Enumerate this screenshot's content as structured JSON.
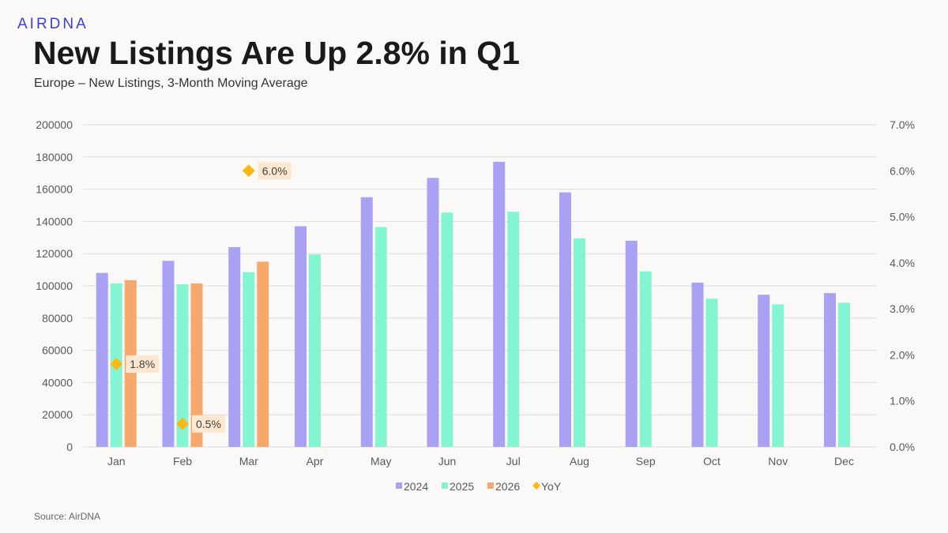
{
  "header": {
    "logo": "AIRDNA",
    "title": "New Listings Are Up 2.8% in Q1",
    "subtitle": "Europe – New Listings, 3-Month Moving Average"
  },
  "footer": {
    "source": "Source: AirDNA"
  },
  "colors": {
    "s2024": "#a9a1f3",
    "s2025": "#83f5d2",
    "s2026": "#f7a86b",
    "yoy": "#fcb913",
    "label_bg": "#fde8cf",
    "grid": "#dcdcdc"
  },
  "chart_data": {
    "type": "bar",
    "categories": [
      "Jan",
      "Feb",
      "Mar",
      "Apr",
      "May",
      "Jun",
      "Jul",
      "Aug",
      "Sep",
      "Oct",
      "Nov",
      "Dec"
    ],
    "series": [
      {
        "name": "2024",
        "values": [
          108000,
          115500,
          124000,
          137000,
          155000,
          167000,
          177000,
          158000,
          128000,
          102000,
          94500,
          95500
        ]
      },
      {
        "name": "2025",
        "values": [
          101500,
          101000,
          108500,
          119500,
          136500,
          145500,
          146000,
          129500,
          109000,
          92000,
          88500,
          89500
        ]
      },
      {
        "name": "2026",
        "values": [
          103500,
          101500,
          115000,
          null,
          null,
          null,
          null,
          null,
          null,
          null,
          null,
          null
        ]
      }
    ],
    "yoy": {
      "name": "YoY",
      "type": "scatter",
      "axis": "secondary",
      "values": [
        1.8,
        0.5,
        6.0
      ],
      "labels": [
        "1.8%",
        "0.5%",
        "6.0%"
      ]
    },
    "left_axis": {
      "ylim": [
        0,
        200000
      ],
      "ticks": [
        "0",
        "20000",
        "40000",
        "60000",
        "80000",
        "100000",
        "120000",
        "140000",
        "160000",
        "180000",
        "200000"
      ]
    },
    "right_axis": {
      "ylim": [
        0,
        7.0
      ],
      "ticks": [
        "0.0%",
        "1.0%",
        "2.0%",
        "3.0%",
        "4.0%",
        "5.0%",
        "6.0%",
        "7.0%"
      ]
    },
    "legend": [
      "2024",
      "2025",
      "2026",
      "YoY"
    ],
    "legend_position": "bottom",
    "grid": true
  }
}
